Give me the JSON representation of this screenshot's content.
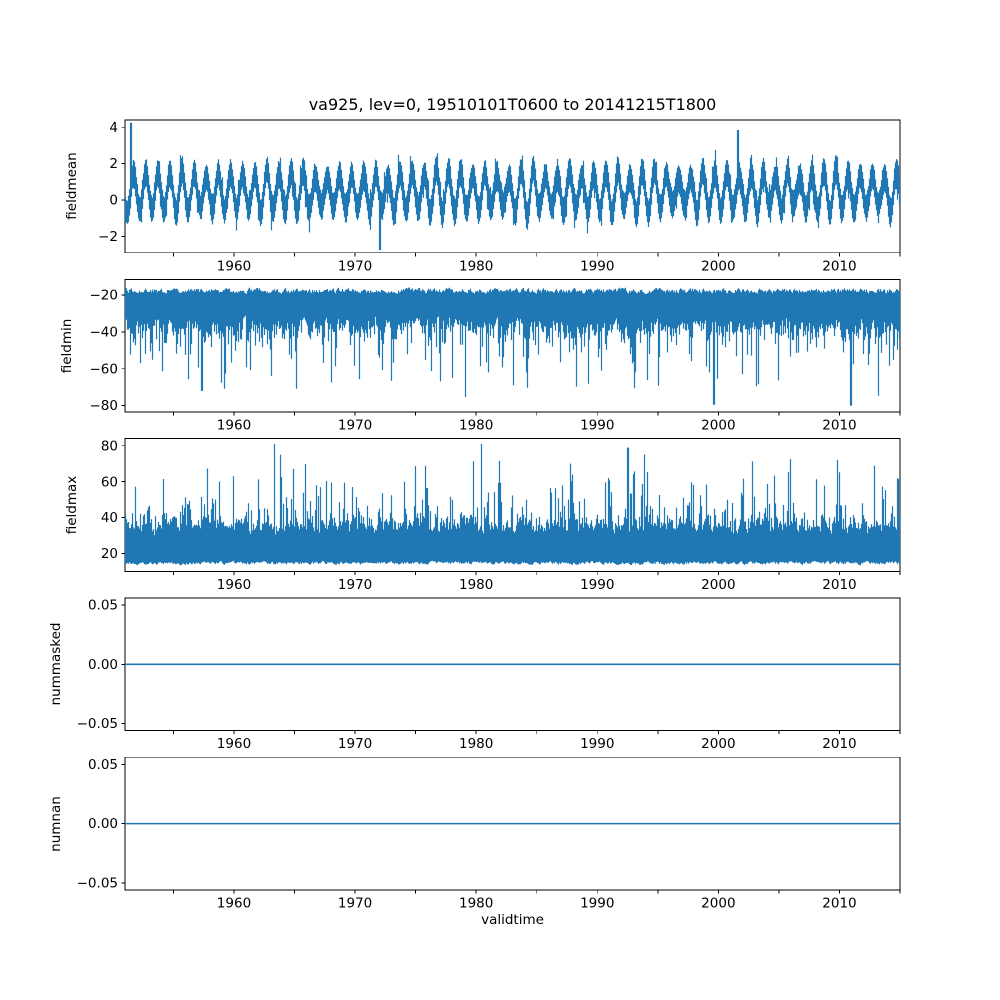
{
  "figure": {
    "title": "va925, lev=0, 19510101T0600 to 20141215T1800",
    "background_color": "#ffffff",
    "axis_color": "#000000",
    "line_color": "#1f77b4",
    "text_color": "#000000"
  },
  "chart_data": {
    "type": "line",
    "title": "va925, lev=0, 19510101T0600 to 20141215T1800",
    "xlabel": "validtime",
    "x_range": [
      1951,
      2015
    ],
    "x_tick_step_years": 5,
    "x_labeled_ticks": [
      1960,
      1970,
      1980,
      1990,
      2000,
      2010
    ],
    "x_tick_labels": [
      "1960",
      "1970",
      "1980",
      "1990",
      "2000",
      "2010"
    ],
    "grid": false,
    "legend": false,
    "subplots": [
      {
        "name": "fieldmean",
        "ylabel": "fieldmean",
        "ylim": [
          -2.9,
          4.4
        ],
        "yticks": [
          {
            "v": 4,
            "label": "4"
          },
          {
            "v": 2,
            "label": "2"
          },
          {
            "v": 0,
            "label": "0"
          },
          {
            "v": -2,
            "label": "−2"
          }
        ],
        "summary": "Dense 6-hourly series 1951-2014; annual oscillation band roughly between −2 and +3 around mean ≈0.5; maximum ≈4.25 in 1951, ≈3.85 near 2001, minimum ≈−2.75 near 1972.",
        "series": {
          "kind": "seasonal_band",
          "seed": 11,
          "mean": 0.45,
          "season_amp_min": 0.85,
          "season_amp_max": 1.55,
          "phase": 4.0,
          "half_thick_min": 0.5,
          "half_thick_max": 0.95,
          "widen_prob": 0.08,
          "widen_amount": 0.6,
          "clip_min": -2.75,
          "clip_max": 4.25,
          "extremes": [
            {
              "year": 1951.45,
              "value": 4.25
            },
            {
              "year": 1972.0,
              "value": -2.75
            },
            {
              "year": 2001.6,
              "value": 3.85
            }
          ]
        }
      },
      {
        "name": "fieldmin",
        "ylabel": "fieldmin",
        "ylim": [
          -83.5,
          -11.5
        ],
        "yticks": [
          {
            "v": -20,
            "label": "−20"
          },
          {
            "v": -40,
            "label": "−40"
          },
          {
            "v": -60,
            "label": "−60"
          },
          {
            "v": -80,
            "label": "−80"
          }
        ],
        "summary": "Solid band roughly −16 to −45 with frequent downward spikes to −55..−75; deepest spikes ≈−80.",
        "series": {
          "kind": "lower_spike_band",
          "seed": 23,
          "top_base": -15.5,
          "top_jitter": 4.5,
          "body_base": -30,
          "body_jitter": 17,
          "body_pow": 1.4,
          "season_amp": 4,
          "season_phase": 1.2,
          "spike_prob": 0.3,
          "spike_base": 6,
          "spike_jitter": 30,
          "spike_pow": 2,
          "clip": -80.5,
          "extremes": [
            {
              "year": 1957.3,
              "value": -72
            },
            {
              "year": 1999.6,
              "value": -79.5
            },
            {
              "year": 2010.9,
              "value": -80
            }
          ]
        }
      },
      {
        "name": "fieldmax",
        "ylabel": "fieldmax",
        "ylim": [
          10,
          84
        ],
        "yticks": [
          {
            "v": 80,
            "label": "80"
          },
          {
            "v": 60,
            "label": "60"
          },
          {
            "v": 40,
            "label": "40"
          },
          {
            "v": 20,
            "label": "20"
          }
        ],
        "summary": "Solid band roughly 13 to 45 with frequent upward spikes to 50..70; highest spikes ≈80–81.",
        "series": {
          "kind": "upper_spike_band",
          "seed": 37,
          "bottom_base": 13.2,
          "bottom_jitter": 3,
          "body_base": 29,
          "body_jitter": 13,
          "body_pow": 1.3,
          "season_amp": 4,
          "season_phase": 2.6,
          "spike_prob": 0.42,
          "spike_base": 4,
          "spike_jitter": 36,
          "spike_pow": 2,
          "clip": 80.5,
          "extremes": [
            {
              "year": 1963.3,
              "value": 81
            },
            {
              "year": 1980.4,
              "value": 81
            },
            {
              "year": 1992.5,
              "value": 79
            }
          ]
        }
      },
      {
        "name": "nummasked",
        "ylabel": "nummasked",
        "ylim": [
          -0.056,
          0.056
        ],
        "yticks": [
          {
            "v": 0.05,
            "label": "0.05"
          },
          {
            "v": 0,
            "label": "0.00"
          },
          {
            "v": -0.05,
            "label": "−0.05"
          }
        ],
        "summary": "Constant zero for the whole period.",
        "series": {
          "kind": "constant",
          "value": 0
        }
      },
      {
        "name": "numnan",
        "ylabel": "numnan",
        "ylim": [
          -0.056,
          0.056
        ],
        "yticks": [
          {
            "v": 0.05,
            "label": "0.05"
          },
          {
            "v": 0,
            "label": "0.00"
          },
          {
            "v": -0.05,
            "label": "−0.05"
          }
        ],
        "summary": "Constant zero for the whole period.",
        "series": {
          "kind": "constant",
          "value": 0
        }
      }
    ]
  }
}
